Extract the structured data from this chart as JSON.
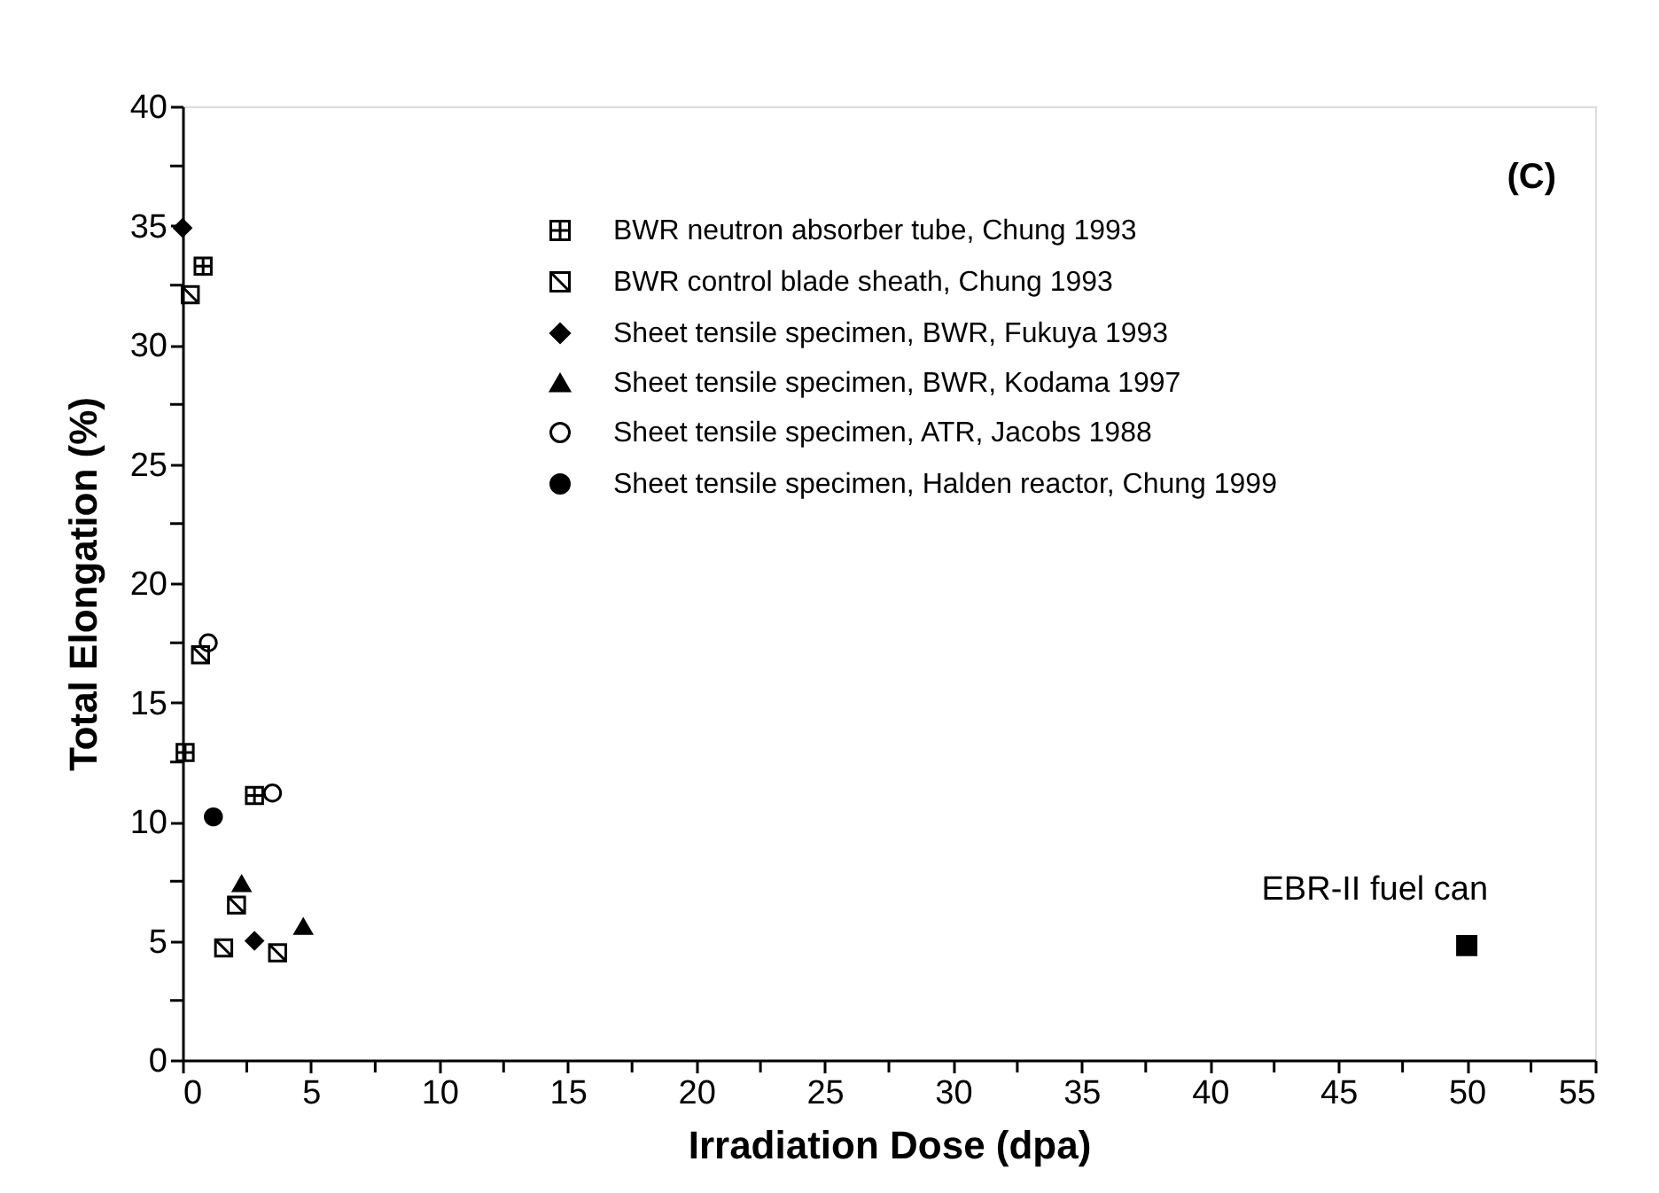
{
  "chart_data": {
    "type": "scatter",
    "xlabel": "Irradiation Dose (dpa)",
    "ylabel": "Total Elongation (%)",
    "xlim": [
      0,
      55
    ],
    "ylim": [
      0,
      40
    ],
    "xticks": [
      0,
      {
        "value": 2.5,
        "label": null
      },
      5,
      {
        "value": 7.5,
        "label": null
      },
      10,
      {
        "value": 12.5,
        "label": null
      },
      15,
      {
        "value": 17.5,
        "label": null
      },
      20,
      {
        "value": 22.5,
        "label": null
      },
      25,
      {
        "value": 27.5,
        "label": null
      },
      30,
      {
        "value": 32.5,
        "label": null
      },
      35,
      {
        "value": 37.5,
        "label": null
      },
      40,
      {
        "value": 42.5,
        "label": null
      },
      45,
      {
        "value": 47.5,
        "label": null
      },
      50,
      {
        "value": 52.5,
        "label": null
      },
      55
    ],
    "yticks": [
      0,
      {
        "value": 2.5,
        "label": null
      },
      5,
      {
        "value": 7.5,
        "label": null
      },
      10,
      {
        "value": 12.5,
        "label": null
      },
      15,
      {
        "value": 17.5,
        "label": null
      },
      20,
      {
        "value": 22.5,
        "label": null
      },
      25,
      {
        "value": 27.5,
        "label": null
      },
      30,
      {
        "value": 32.5,
        "label": null
      },
      35,
      {
        "value": 37.5,
        "label": null
      },
      40
    ],
    "grid": false,
    "legend": "top right",
    "series": [
      {
        "name": "BWR neutron absorber tube, Chung 1993",
        "color": "#000000",
        "marker": "cross",
        "x": [
          0.8,
          0.1,
          2.8
        ],
        "values": [
          33.3,
          12.9,
          11.1
        ]
      },
      {
        "name": "BWR control blade sheath, Chung 1993",
        "color": "#000000",
        "marker": "cross",
        "x": [
          0.3,
          0.7,
          2.1,
          1.6,
          3.7
        ],
        "values": [
          32.1,
          17.0,
          6.5,
          4.7,
          4.5
        ]
      },
      {
        "name": "Sheet tensile specimen, BWR, Fukuya 1993",
        "color": "#000000",
        "marker": "diamond",
        "x": [
          0.0,
          2.8
        ],
        "values": [
          34.9,
          5.0
        ]
      },
      {
        "name": "Sheet tensile specimen, BWR, Kodama 1997",
        "color": "#000000",
        "marker": "triangle",
        "x": [
          2.3,
          4.7
        ],
        "values": [
          7.4,
          5.6
        ]
      },
      {
        "name": "Sheet tensile specimen, ATR, Jacobs 1988",
        "color": "#000000",
        "marker": "circle",
        "x": [
          1.0,
          3.5
        ],
        "values": [
          17.5,
          11.2
        ]
      },
      {
        "name": "Sheet tensile specimen, Halden reactor, Chung 1999",
        "color": "#000000",
        "marker": "circle",
        "x": [
          1.2
        ],
        "values": [
          10.2
        ]
      },
      {
        "color": "#000000",
        "marker": "square",
        "x": [
          50
        ],
        "values": [
          4.8
        ]
      }
    ],
    "annotations": [
      "(C)",
      {
        "text": "EBR-II fuel can",
        "x": 50,
        "y": 4.8
      }
    ]
  }
}
